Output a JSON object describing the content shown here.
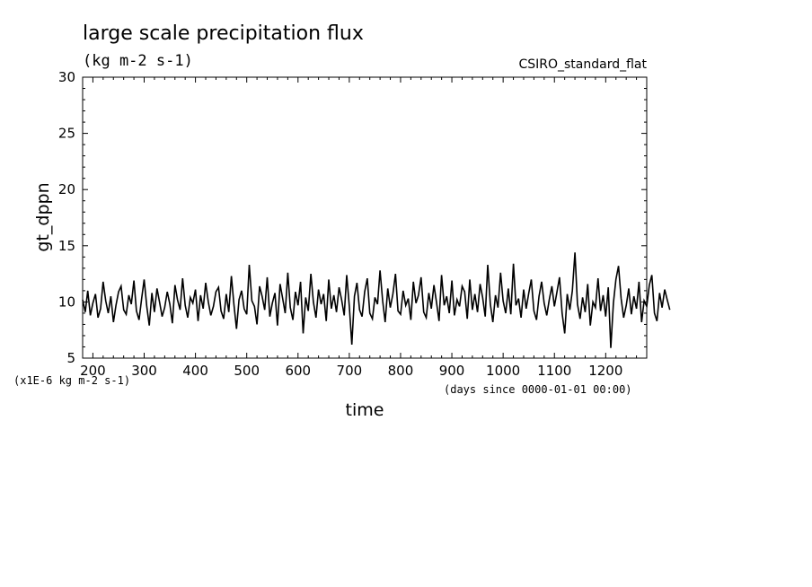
{
  "chart_data": {
    "type": "line",
    "title": "large scale precipitation flux",
    "subtitle": "(kg m-2 s-1)",
    "model_label": "CSIRO_standard_flat",
    "xlabel": "time",
    "ylabel": "gt_dppn",
    "scale_note": "(x1E-6 kg m-2 s-1)",
    "time_units_note": "(days since 0000-01-01 00:00)",
    "xlim": [
      180,
      1280
    ],
    "ylim": [
      5,
      30
    ],
    "x_ticks": [
      "200",
      "300",
      "400",
      "500",
      "600",
      "700",
      "800",
      "900",
      "1000",
      "1100",
      "1200"
    ],
    "y_ticks": [
      "5",
      "10",
      "15",
      "20",
      "25",
      "30"
    ],
    "grid": false,
    "series": [
      {
        "x_start": 180,
        "x_step": 5,
        "values": [
          10.2,
          9.1,
          11.0,
          8.8,
          9.9,
          10.7,
          8.6,
          9.4,
          11.8,
          10.1,
          9.0,
          10.5,
          8.2,
          9.7,
          10.9,
          11.4,
          9.3,
          8.9,
          10.6,
          9.8,
          11.9,
          9.2,
          8.4,
          10.3,
          12.0,
          9.6,
          7.9,
          10.8,
          9.1,
          11.2,
          10.0,
          8.7,
          9.5,
          10.9,
          9.8,
          8.1,
          11.5,
          10.2,
          9.3,
          12.1,
          9.7,
          8.6,
          10.4,
          9.9,
          11.1,
          8.3,
          10.6,
          9.4,
          11.7,
          10.0,
          8.8,
          9.6,
          10.9,
          11.3,
          9.2,
          8.5,
          10.7,
          9.1,
          12.3,
          9.8,
          7.6,
          10.2,
          11.0,
          9.4,
          8.9,
          13.3,
          10.1,
          9.6,
          8.0,
          11.4,
          10.5,
          9.3,
          12.2,
          8.7,
          9.9,
          10.8,
          7.9,
          11.6,
          10.3,
          9.0,
          12.6,
          9.5,
          8.4,
          10.9,
          9.7,
          11.8,
          7.2,
          10.4,
          9.2,
          12.5,
          10.0,
          8.6,
          11.1,
          9.8,
          10.7,
          8.3,
          12.0,
          9.4,
          10.6,
          9.1,
          11.3,
          10.2,
          8.8,
          12.4,
          9.6,
          6.2,
          10.5,
          11.7,
          9.3,
          8.7,
          10.9,
          12.1,
          9.0,
          8.5,
          10.4,
          9.8,
          12.8,
          10.1,
          8.2,
          11.2,
          9.5,
          10.7,
          12.5,
          9.2,
          8.9,
          11.0,
          9.7,
          10.3,
          8.4,
          11.8,
          9.9,
          10.6,
          12.2,
          9.1,
          8.6,
          10.8,
          9.4,
          11.5,
          10.0,
          8.3,
          12.4,
          9.7,
          10.5,
          9.0,
          11.9,
          8.8,
          10.2,
          9.6,
          11.4,
          10.9,
          8.5,
          12.0,
          9.3,
          10.7,
          9.1,
          11.6,
          10.4,
          8.7,
          13.3,
          9.8,
          8.2,
          10.6,
          9.5,
          12.6,
          10.1,
          9.0,
          11.2,
          8.9,
          13.4,
          9.7,
          10.3,
          8.6,
          11.1,
          9.4,
          10.8,
          12.0,
          9.2,
          8.4,
          10.5,
          11.8,
          9.9,
          8.8,
          10.2,
          11.4,
          9.6,
          10.9,
          12.2,
          9.0,
          7.2,
          10.7,
          9.3,
          11.0,
          14.4,
          9.8,
          8.5,
          10.4,
          9.1,
          11.6,
          7.9,
          10.0,
          9.5,
          12.1,
          9.2,
          10.6,
          8.7,
          11.3,
          5.9,
          9.9,
          12.0,
          13.2,
          10.3,
          8.6,
          9.7,
          11.2,
          8.9,
          10.5,
          9.4,
          11.8,
          8.2,
          10.1,
          9.6,
          11.5,
          12.4,
          9.0,
          8.3,
          10.8,
          9.5,
          11.1,
          10.2,
          9.3
        ]
      }
    ]
  }
}
